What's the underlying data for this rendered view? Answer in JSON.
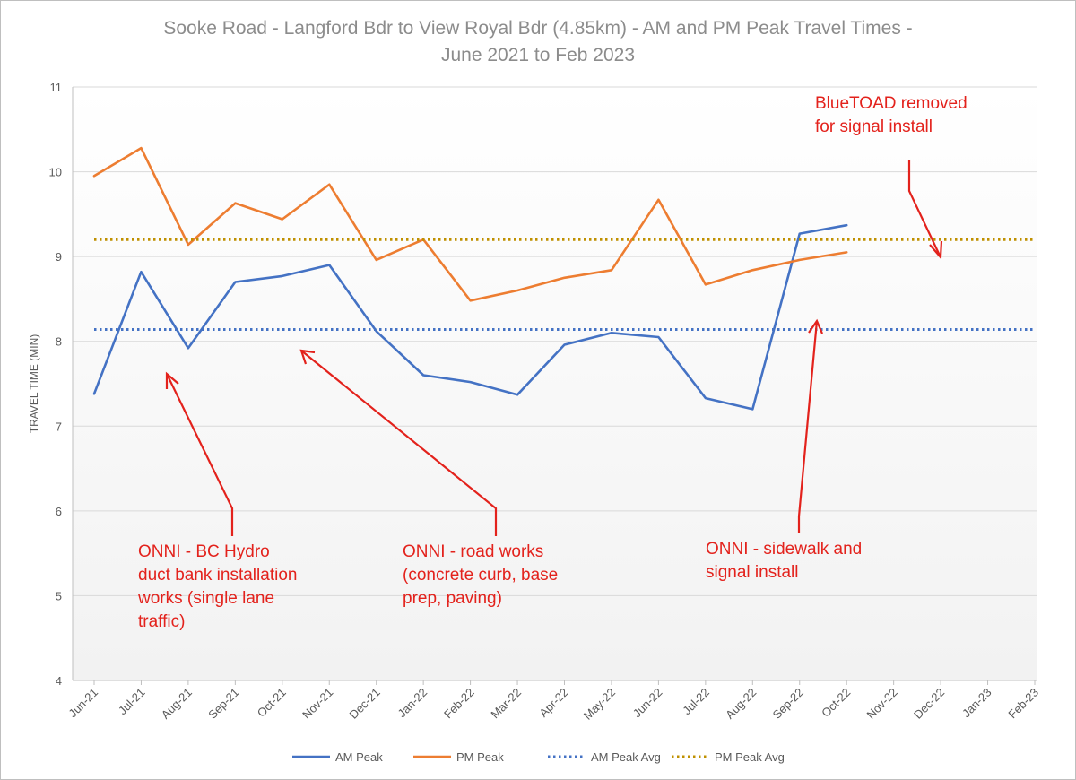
{
  "chart_data": {
    "type": "line",
    "title": [
      "Sooke Road - Langford Bdr to View Royal Bdr (4.85km) - AM and PM Peak Travel Times -",
      "June 2021 to Feb 2023"
    ],
    "xlabel": "",
    "ylabel": "TRAVEL TIME (MIN)",
    "ylim": [
      4,
      11
    ],
    "yticks": [
      4,
      5,
      6,
      7,
      8,
      9,
      10,
      11
    ],
    "grid": "horizontal",
    "legend_position": "bottom",
    "categories": [
      "Jun-21",
      "Jul-21",
      "Aug-21",
      "Sep-21",
      "Oct-21",
      "Nov-21",
      "Dec-21",
      "Jan-22",
      "Feb-22",
      "Mar-22",
      "Apr-22",
      "May-22",
      "Jun-22",
      "Jul-22",
      "Aug-22",
      "Sep-22",
      "Oct-22",
      "Nov-22",
      "Dec-22",
      "Jan-23",
      "Feb-23"
    ],
    "series": [
      {
        "name": "AM Peak",
        "style": "solid",
        "color": "#4472c4",
        "values": [
          7.38,
          8.82,
          7.92,
          8.7,
          8.77,
          8.9,
          8.12,
          7.6,
          7.52,
          7.37,
          7.96,
          8.1,
          8.05,
          7.33,
          7.2,
          9.27,
          9.37,
          null,
          null,
          null,
          null
        ]
      },
      {
        "name": "PM Peak",
        "style": "solid",
        "color": "#ed7d31",
        "values": [
          9.95,
          10.28,
          9.14,
          9.63,
          9.44,
          9.85,
          8.96,
          9.2,
          8.48,
          8.6,
          8.75,
          8.84,
          9.67,
          8.67,
          8.84,
          8.96,
          9.05,
          null,
          null,
          null,
          null
        ]
      },
      {
        "name": "AM Peak Avg",
        "style": "dotted",
        "color": "#4472c4",
        "constant": 8.14
      },
      {
        "name": "PM Peak Avg",
        "style": "dotted",
        "color": "#bf9000",
        "constant": 9.2
      }
    ],
    "annotations": [
      {
        "lines": [
          "BlueTOAD removed",
          "for signal install"
        ]
      },
      {
        "lines": [
          "ONNI - BC Hydro",
          "duct bank installation",
          "works (single lane",
          "traffic)"
        ]
      },
      {
        "lines": [
          "ONNI - road works",
          "(concrete curb, base",
          "prep, paving)"
        ]
      },
      {
        "lines": [
          "ONNI - sidewalk and",
          "signal install"
        ]
      }
    ]
  },
  "colors": {
    "annotation": "#e3221c",
    "gridline": "#d9d9d9",
    "axis": "#bfbfbf",
    "plot_gradient_top": "#ffffff",
    "plot_gradient_bottom": "#f2f2f2"
  }
}
